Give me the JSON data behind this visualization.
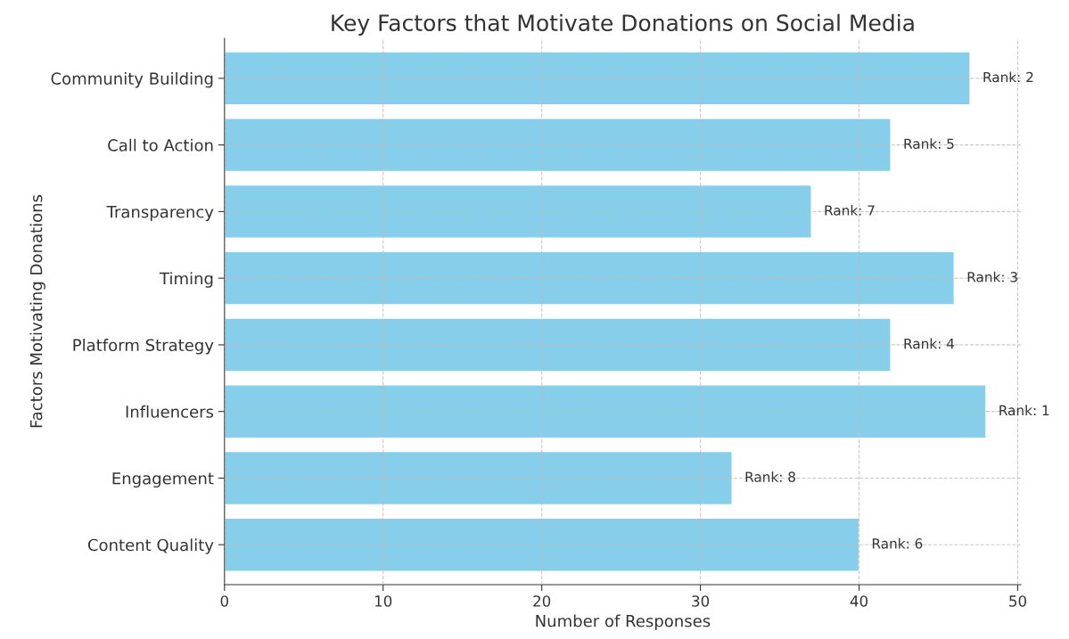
{
  "chart_data": {
    "type": "bar",
    "orientation": "horizontal",
    "title": "Key Factors that Motivate Donations on Social Media",
    "xlabel": "Number of Responses",
    "ylabel": "Factors Motivating Donations",
    "categories": [
      "Community Building",
      "Call to Action",
      "Transparency",
      "Timing",
      "Platform Strategy",
      "Influencers",
      "Engagement",
      "Content Quality"
    ],
    "values": [
      47,
      42,
      37,
      46,
      42,
      48,
      32,
      40
    ],
    "annotations": [
      {
        "text": "Rank: 2",
        "x": 47,
        "y": "Community Building"
      },
      {
        "text": "Rank: 5",
        "x": 42,
        "y": "Call to Action"
      },
      {
        "text": "Rank: 7",
        "x": 37,
        "y": "Transparency"
      },
      {
        "text": "Rank: 3",
        "x": 46,
        "y": "Timing"
      },
      {
        "text": "Rank: 4",
        "x": 42,
        "y": "Platform Strategy"
      },
      {
        "text": "Rank: 1",
        "x": 48,
        "y": "Influencers"
      },
      {
        "text": "Rank: 8",
        "x": 32,
        "y": "Engagement"
      },
      {
        "text": "Rank: 6",
        "x": 40,
        "y": "Content Quality"
      }
    ],
    "color": "#87ceeb",
    "xlim": [
      0,
      50.2
    ],
    "xticks": [
      0,
      10,
      20,
      30,
      40,
      50
    ],
    "grid": true,
    "legend": false
  }
}
